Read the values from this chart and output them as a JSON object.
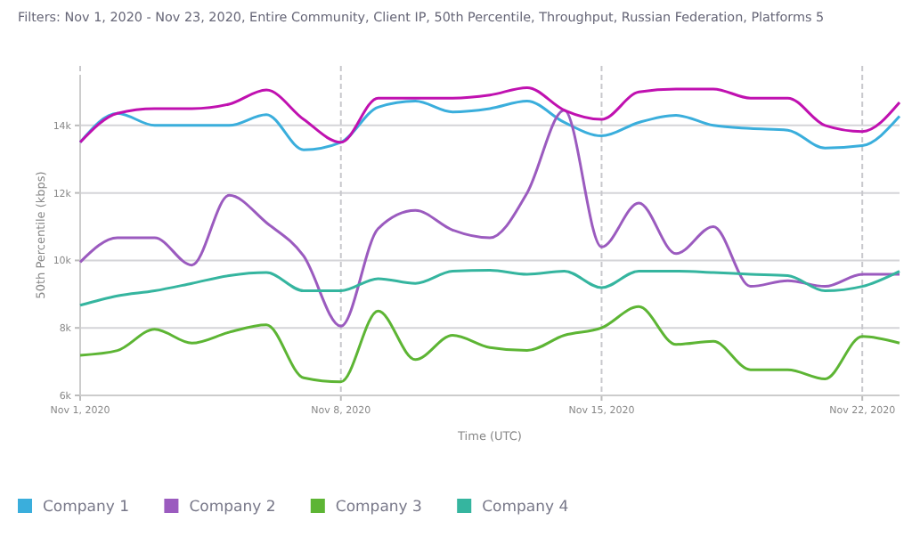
{
  "chart_data": {
    "type": "line",
    "title": "Filters: Nov 1, 2020 - Nov 23, 2020, Entire Community, Client IP, 50th Percentile, Throughput, Russian Federation, Platforms 5",
    "xlabel": "Time (UTC)",
    "ylabel": "50th Percentile (kbps)",
    "x": [
      "2020-11-01",
      "2020-11-02",
      "2020-11-03",
      "2020-11-04",
      "2020-11-05",
      "2020-11-06",
      "2020-11-07",
      "2020-11-08",
      "2020-11-09",
      "2020-11-10",
      "2020-11-11",
      "2020-11-12",
      "2020-11-13",
      "2020-11-14",
      "2020-11-15",
      "2020-11-16",
      "2020-11-17",
      "2020-11-18",
      "2020-11-19",
      "2020-11-20",
      "2020-11-21",
      "2020-11-22",
      "2020-11-23"
    ],
    "series": [
      {
        "name": "Company 1",
        "color": "#3aaedc",
        "values": [
          13500,
          14360,
          14000,
          14000,
          14000,
          14320,
          13280,
          13500,
          14540,
          14720,
          14400,
          14500,
          14720,
          14090,
          13690,
          14090,
          14300,
          14000,
          13910,
          13860,
          13330,
          13400,
          14270
        ]
      },
      {
        "name": "Company 2",
        "color": "#9b5bbf",
        "values": [
          9950,
          10670,
          10670,
          9860,
          11930,
          11120,
          10130,
          8050,
          10940,
          11480,
          10900,
          10670,
          12000,
          14450,
          10400,
          11700,
          10200,
          11000,
          9230,
          9400,
          9230,
          9590,
          9590
        ]
      },
      {
        "color": "#c011b0",
        "values": [
          13500,
          14360,
          14500,
          14500,
          14630,
          15050,
          14180,
          13500,
          14810,
          14810,
          14810,
          14900,
          15120,
          14450,
          14180,
          14990,
          15080,
          15080,
          14810,
          14810,
          14000,
          13820,
          14680
        ]
      },
      {
        "name": "Company 3",
        "color": "#5db534",
        "values": [
          7190,
          7330,
          7960,
          7550,
          7870,
          8090,
          6520,
          6400,
          8500,
          7060,
          7780,
          7420,
          7330,
          7780,
          8000,
          8630,
          7510,
          7600,
          6760,
          6760,
          6490,
          7750,
          7550
        ]
      },
      {
        "name": "Company 4",
        "color": "#35b59f",
        "values": [
          8670,
          8950,
          9100,
          9320,
          9550,
          9640,
          9100,
          9100,
          9460,
          9320,
          9680,
          9710,
          9590,
          9680,
          9190,
          9680,
          9680,
          9640,
          9590,
          9550,
          9100,
          9230,
          9680
        ]
      }
    ],
    "xlim": [
      "2020-11-01",
      "2020-11-23"
    ],
    "xticks": [
      {
        "value": "2020-11-01",
        "label": "Nov 1, 2020"
      },
      {
        "value": "2020-11-08",
        "label": "Nov 8, 2020"
      },
      {
        "value": "2020-11-15",
        "label": "Nov 15, 2020"
      },
      {
        "value": "2020-11-22",
        "label": "Nov 22, 2020"
      }
    ],
    "ylim": [
      6000,
      15500
    ],
    "yticks": [
      {
        "value": 6000,
        "label": "6k"
      },
      {
        "value": 8000,
        "label": "8k"
      },
      {
        "value": 10000,
        "label": "10k"
      },
      {
        "value": 12000,
        "label": "12k"
      },
      {
        "value": 14000,
        "label": "14k"
      }
    ],
    "grid": true,
    "legend": "bottom",
    "marker": "none",
    "line_style": "solid"
  }
}
